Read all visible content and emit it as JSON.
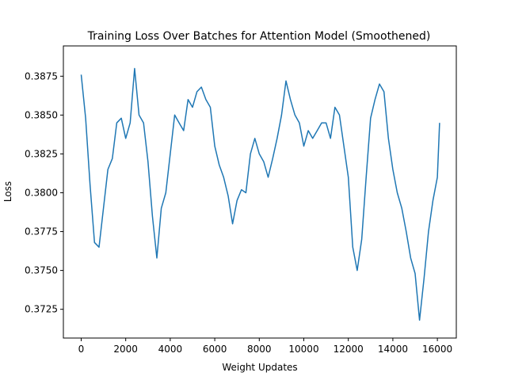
{
  "chart_data": {
    "type": "line",
    "title": "Training Loss Over Batches for Attention Model (Smoothened)",
    "xlabel": "Weight Updates",
    "ylabel": "Loss",
    "xlim": [
      -800,
      16850
    ],
    "ylim": [
      0.37065,
      0.38945
    ],
    "xticks": [
      0,
      2000,
      4000,
      6000,
      8000,
      10000,
      12000,
      14000,
      16000
    ],
    "yticks": [
      0.3725,
      0.375,
      0.3775,
      0.38,
      0.3825,
      0.385,
      0.3875
    ],
    "grid": false,
    "colors": {
      "line": "#1f77b4"
    },
    "series": [
      {
        "name": "",
        "x": [
          0,
          200,
          400,
          600,
          800,
          1000,
          1200,
          1400,
          1600,
          1800,
          2000,
          2200,
          2400,
          2600,
          2800,
          3000,
          3200,
          3400,
          3600,
          3800,
          4000,
          4200,
          4400,
          4600,
          4800,
          5000,
          5200,
          5400,
          5600,
          5800,
          6000,
          6200,
          6400,
          6600,
          6800,
          7000,
          7200,
          7400,
          7600,
          7800,
          8000,
          8200,
          8400,
          8600,
          8800,
          9000,
          9200,
          9400,
          9600,
          9800,
          10000,
          10200,
          10400,
          10600,
          10800,
          11000,
          11200,
          11400,
          11600,
          11800,
          12000,
          12200,
          12400,
          12600,
          12800,
          13000,
          13200,
          13400,
          13600,
          13800,
          14000,
          14200,
          14400,
          14600,
          14800,
          15000,
          15200,
          15400,
          15600,
          15800,
          16000,
          16100
        ],
        "values": [
          0.3876,
          0.3848,
          0.3805,
          0.3768,
          0.3765,
          0.379,
          0.3815,
          0.3822,
          0.3845,
          0.3848,
          0.3835,
          0.3845,
          0.388,
          0.385,
          0.3845,
          0.382,
          0.3785,
          0.3758,
          0.379,
          0.38,
          0.3825,
          0.385,
          0.3845,
          0.384,
          0.386,
          0.3855,
          0.3865,
          0.3868,
          0.386,
          0.3855,
          0.383,
          0.3818,
          0.381,
          0.3798,
          0.378,
          0.3795,
          0.3802,
          0.38,
          0.3825,
          0.3835,
          0.3825,
          0.382,
          0.381,
          0.3822,
          0.3835,
          0.385,
          0.3872,
          0.386,
          0.385,
          0.3845,
          0.383,
          0.384,
          0.3835,
          0.384,
          0.3845,
          0.3845,
          0.3835,
          0.3855,
          0.385,
          0.383,
          0.381,
          0.3765,
          0.375,
          0.377,
          0.381,
          0.3848,
          0.386,
          0.387,
          0.3865,
          0.3835,
          0.3815,
          0.38,
          0.379,
          0.3775,
          0.3758,
          0.3748,
          0.3718,
          0.3745,
          0.3775,
          0.3795,
          0.381,
          0.3845
        ]
      }
    ]
  }
}
